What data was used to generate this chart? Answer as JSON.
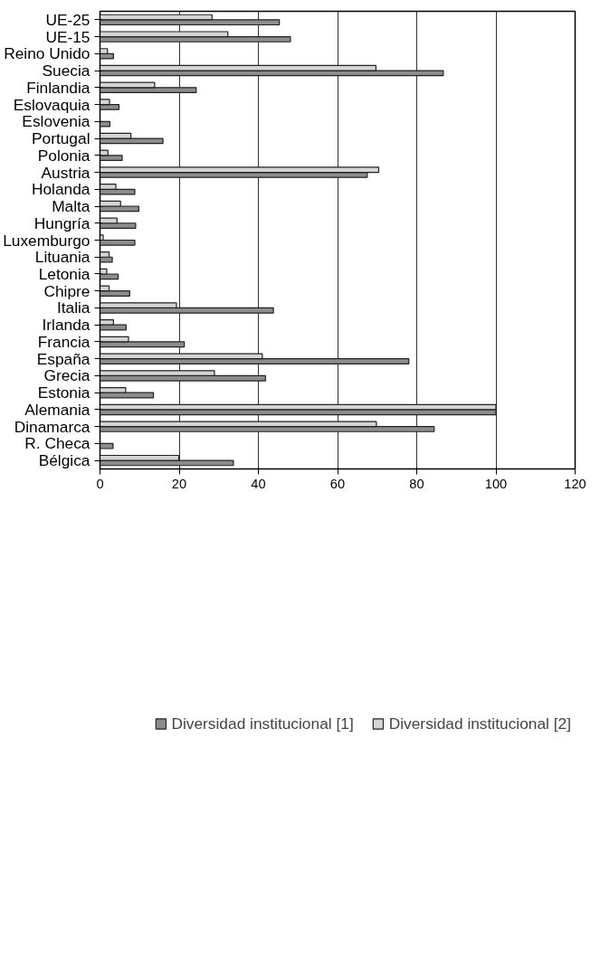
{
  "chart_data": {
    "type": "bar",
    "orientation": "horizontal",
    "categories": [
      "UE-25",
      "UE-15",
      "Reino Unido",
      "Suecia",
      "Finlandia",
      "Eslovaquia",
      "Eslovenia",
      "Portugal",
      "Polonia",
      "Austria",
      "Holanda",
      "Malta",
      "Hungría",
      "Luxemburgo",
      "Lituania",
      "Letonia",
      "Chipre",
      "Italia",
      "Irlanda",
      "Francia",
      "España",
      "Grecia",
      "Estonia",
      "Alemania",
      "Dinamarca",
      "R. Checa",
      "Bélgica"
    ],
    "series": [
      {
        "name": "Diversidad institucional [1]",
        "color": "#8c8c8c",
        "values": [
          45.3,
          48.1,
          3.4,
          86.7,
          24.3,
          4.8,
          2.5,
          15.9,
          5.6,
          67.5,
          8.8,
          9.8,
          9.0,
          8.8,
          3.1,
          4.6,
          7.5,
          43.8,
          6.6,
          21.3,
          78.0,
          41.8,
          13.5,
          100,
          84.4,
          3.3,
          33.7
        ]
      },
      {
        "name": "Diversidad institucional [2]",
        "color": "#d4d4d4",
        "values": [
          28.3,
          32.3,
          1.9,
          69.7,
          13.8,
          2.4,
          null,
          7.8,
          2.0,
          70.4,
          4.0,
          5.2,
          4.3,
          0.8,
          2.3,
          1.7,
          2.3,
          19.3,
          3.4,
          7.2,
          41.0,
          28.9,
          6.5,
          100,
          69.8,
          null,
          19.9
        ]
      }
    ],
    "xlim": [
      0,
      120
    ],
    "xticks": [
      0,
      20,
      40,
      60,
      80,
      100,
      120
    ],
    "grid": "x",
    "legend": "bottom"
  }
}
